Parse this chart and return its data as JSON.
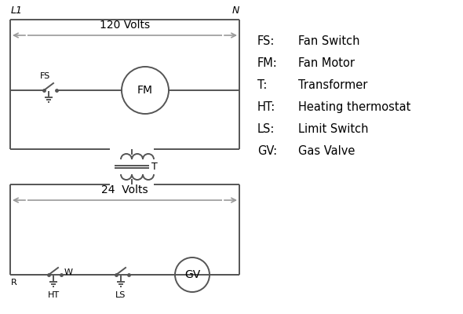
{
  "legend": [
    [
      "FS:",
      "Fan Switch"
    ],
    [
      "FM:",
      "Fan Motor"
    ],
    [
      "T:",
      "Transformer"
    ],
    [
      "HT:",
      "Heating thermostat"
    ],
    [
      "LS:",
      "Limit Switch"
    ],
    [
      "GV:",
      "Gas Valve"
    ]
  ],
  "line_color": "#555555",
  "bg_color": "#ffffff",
  "text_color": "#000000",
  "arrow_color": "#999999"
}
